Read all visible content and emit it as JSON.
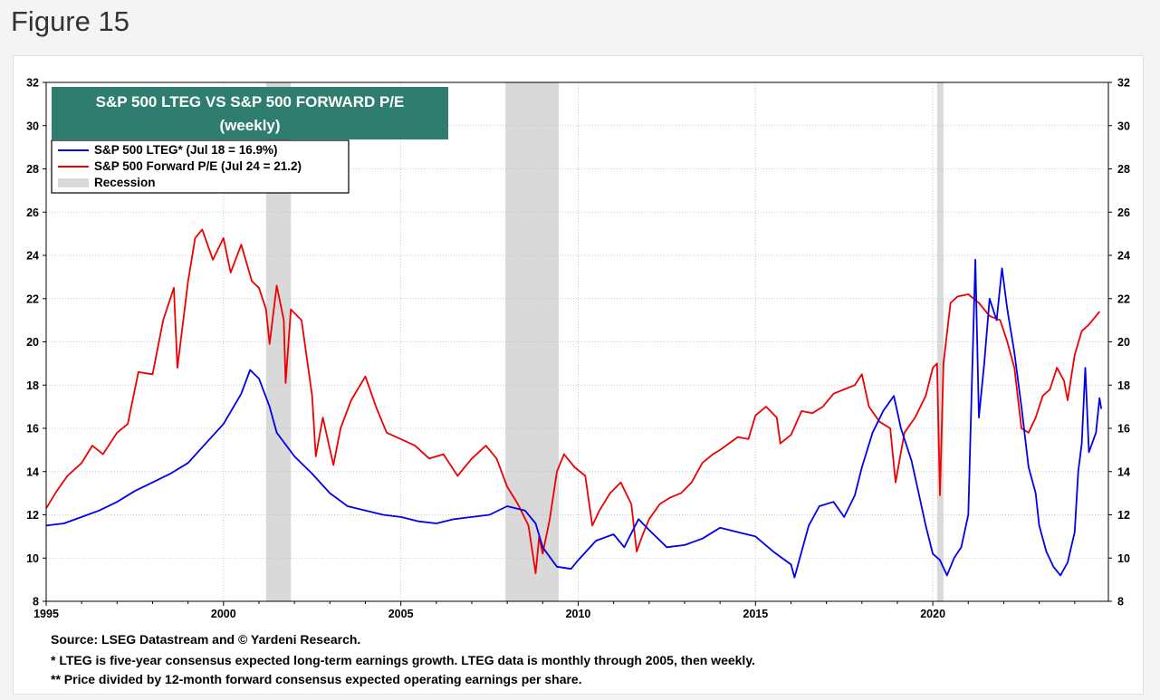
{
  "figure_label": "Figure 15",
  "footnotes": {
    "source": "Source: LSEG Datastream and © Yardeni Research.",
    "note1": "*  LTEG is five-year consensus expected long-term earnings growth. LTEG data is monthly through 2005, then weekly.",
    "note2": "** Price divided by 12-month forward consensus expected operating earnings per share."
  },
  "colors": {
    "lteg": "#0000ee",
    "pe": "#ee0000",
    "recession": "#d9d9d9",
    "title_bg": "#2e7d6e"
  },
  "chart_data": {
    "type": "line",
    "title": "S&P 500 LTEG VS S&P 500 FORWARD P/E",
    "subtitle": "(weekly)",
    "xlim": [
      1995,
      2024.95
    ],
    "ylim": [
      8,
      32
    ],
    "yticks": [
      8,
      10,
      12,
      14,
      16,
      18,
      20,
      22,
      24,
      26,
      28,
      30,
      32
    ],
    "xticks": [
      1995,
      2000,
      2005,
      2010,
      2015,
      2020
    ],
    "grid": true,
    "legend_position": "top-left",
    "legend": [
      {
        "key": "lteg",
        "label": "S&P 500 LTEG* (Jul 18 = 16.9%)"
      },
      {
        "key": "pe",
        "label": "S&P 500 Forward P/E (Jul 24 = 21.2)"
      },
      {
        "key": "recession",
        "label": "Recession"
      }
    ],
    "recessions": [
      [
        2001.2,
        2001.9
      ],
      [
        2007.95,
        2009.45
      ],
      [
        2020.12,
        2020.3
      ]
    ],
    "series": [
      {
        "key": "lteg",
        "name": "S&P 500 LTEG* (Jul 18 = 16.9%)",
        "points": [
          [
            1995.0,
            11.5
          ],
          [
            1995.5,
            11.6
          ],
          [
            1996.0,
            11.9
          ],
          [
            1996.5,
            12.2
          ],
          [
            1997.0,
            12.6
          ],
          [
            1997.5,
            13.1
          ],
          [
            1998.0,
            13.5
          ],
          [
            1998.5,
            13.9
          ],
          [
            1999.0,
            14.4
          ],
          [
            1999.5,
            15.3
          ],
          [
            2000.0,
            16.2
          ],
          [
            2000.5,
            17.6
          ],
          [
            2000.75,
            18.7
          ],
          [
            2001.0,
            18.3
          ],
          [
            2001.3,
            17.0
          ],
          [
            2001.5,
            15.8
          ],
          [
            2002.0,
            14.7
          ],
          [
            2002.5,
            13.9
          ],
          [
            2003.0,
            13.0
          ],
          [
            2003.5,
            12.4
          ],
          [
            2004.0,
            12.2
          ],
          [
            2004.5,
            12.0
          ],
          [
            2005.0,
            11.9
          ],
          [
            2005.5,
            11.7
          ],
          [
            2006.0,
            11.6
          ],
          [
            2006.5,
            11.8
          ],
          [
            2007.0,
            11.9
          ],
          [
            2007.5,
            12.0
          ],
          [
            2008.0,
            12.4
          ],
          [
            2008.5,
            12.2
          ],
          [
            2008.8,
            11.6
          ],
          [
            2009.0,
            10.5
          ],
          [
            2009.4,
            9.6
          ],
          [
            2009.8,
            9.5
          ],
          [
            2010.0,
            9.9
          ],
          [
            2010.5,
            10.8
          ],
          [
            2011.0,
            11.1
          ],
          [
            2011.3,
            10.5
          ],
          [
            2011.7,
            11.8
          ],
          [
            2012.0,
            11.3
          ],
          [
            2012.5,
            10.5
          ],
          [
            2013.0,
            10.6
          ],
          [
            2013.5,
            10.9
          ],
          [
            2014.0,
            11.4
          ],
          [
            2014.5,
            11.2
          ],
          [
            2015.0,
            11.0
          ],
          [
            2015.5,
            10.3
          ],
          [
            2016.0,
            9.7
          ],
          [
            2016.1,
            9.1
          ],
          [
            2016.3,
            10.3
          ],
          [
            2016.5,
            11.5
          ],
          [
            2016.8,
            12.4
          ],
          [
            2017.2,
            12.6
          ],
          [
            2017.5,
            11.9
          ],
          [
            2017.8,
            12.9
          ],
          [
            2018.0,
            14.2
          ],
          [
            2018.3,
            15.8
          ],
          [
            2018.6,
            16.8
          ],
          [
            2018.9,
            17.5
          ],
          [
            2019.1,
            16.0
          ],
          [
            2019.4,
            14.5
          ],
          [
            2019.6,
            13.0
          ],
          [
            2019.8,
            11.5
          ],
          [
            2020.0,
            10.2
          ],
          [
            2020.2,
            9.9
          ],
          [
            2020.4,
            9.2
          ],
          [
            2020.6,
            10.0
          ],
          [
            2020.8,
            10.5
          ],
          [
            2021.0,
            12.0
          ],
          [
            2021.1,
            18.0
          ],
          [
            2021.2,
            23.8
          ],
          [
            2021.3,
            16.5
          ],
          [
            2021.45,
            19.0
          ],
          [
            2021.6,
            22.0
          ],
          [
            2021.8,
            21.0
          ],
          [
            2021.95,
            23.4
          ],
          [
            2022.1,
            21.5
          ],
          [
            2022.3,
            19.5
          ],
          [
            2022.5,
            17.0
          ],
          [
            2022.7,
            14.2
          ],
          [
            2022.9,
            13.0
          ],
          [
            2023.0,
            11.5
          ],
          [
            2023.2,
            10.3
          ],
          [
            2023.4,
            9.6
          ],
          [
            2023.6,
            9.2
          ],
          [
            2023.8,
            9.8
          ],
          [
            2024.0,
            11.2
          ],
          [
            2024.1,
            14.0
          ],
          [
            2024.2,
            15.3
          ],
          [
            2024.3,
            18.8
          ],
          [
            2024.4,
            14.9
          ],
          [
            2024.6,
            15.8
          ],
          [
            2024.7,
            17.4
          ],
          [
            2024.75,
            16.9
          ]
        ]
      },
      {
        "key": "pe",
        "name": "S&P 500 Forward P/E (Jul 24 = 21.2)",
        "points": [
          [
            1995.0,
            12.3
          ],
          [
            1995.3,
            13.1
          ],
          [
            1995.6,
            13.8
          ],
          [
            1996.0,
            14.4
          ],
          [
            1996.3,
            15.2
          ],
          [
            1996.6,
            14.8
          ],
          [
            1997.0,
            15.8
          ],
          [
            1997.3,
            16.2
          ],
          [
            1997.6,
            18.6
          ],
          [
            1998.0,
            18.5
          ],
          [
            1998.3,
            21.0
          ],
          [
            1998.6,
            22.5
          ],
          [
            1998.7,
            18.8
          ],
          [
            1999.0,
            22.8
          ],
          [
            1999.2,
            24.8
          ],
          [
            1999.4,
            25.2
          ],
          [
            1999.7,
            23.8
          ],
          [
            2000.0,
            24.8
          ],
          [
            2000.2,
            23.2
          ],
          [
            2000.5,
            24.5
          ],
          [
            2000.8,
            22.8
          ],
          [
            2001.0,
            22.5
          ],
          [
            2001.2,
            21.5
          ],
          [
            2001.3,
            19.9
          ],
          [
            2001.5,
            22.6
          ],
          [
            2001.7,
            21.0
          ],
          [
            2001.75,
            18.1
          ],
          [
            2001.9,
            21.5
          ],
          [
            2002.2,
            21.0
          ],
          [
            2002.5,
            17.5
          ],
          [
            2002.6,
            14.7
          ],
          [
            2002.8,
            16.5
          ],
          [
            2003.1,
            14.3
          ],
          [
            2003.3,
            16.0
          ],
          [
            2003.6,
            17.3
          ],
          [
            2004.0,
            18.4
          ],
          [
            2004.3,
            17.0
          ],
          [
            2004.6,
            15.8
          ],
          [
            2005.0,
            15.5
          ],
          [
            2005.4,
            15.2
          ],
          [
            2005.8,
            14.6
          ],
          [
            2006.2,
            14.8
          ],
          [
            2006.6,
            13.8
          ],
          [
            2007.0,
            14.6
          ],
          [
            2007.4,
            15.2
          ],
          [
            2007.7,
            14.6
          ],
          [
            2008.0,
            13.3
          ],
          [
            2008.3,
            12.5
          ],
          [
            2008.6,
            11.5
          ],
          [
            2008.8,
            9.3
          ],
          [
            2008.9,
            11.0
          ],
          [
            2009.0,
            10.2
          ],
          [
            2009.2,
            11.8
          ],
          [
            2009.4,
            14.0
          ],
          [
            2009.6,
            14.8
          ],
          [
            2009.9,
            14.2
          ],
          [
            2010.2,
            13.8
          ],
          [
            2010.4,
            11.5
          ],
          [
            2010.6,
            12.2
          ],
          [
            2010.9,
            13.0
          ],
          [
            2011.2,
            13.5
          ],
          [
            2011.5,
            12.5
          ],
          [
            2011.65,
            10.3
          ],
          [
            2011.8,
            11.0
          ],
          [
            2012.0,
            11.8
          ],
          [
            2012.3,
            12.5
          ],
          [
            2012.6,
            12.8
          ],
          [
            2012.9,
            13.0
          ],
          [
            2013.2,
            13.5
          ],
          [
            2013.5,
            14.4
          ],
          [
            2013.8,
            14.8
          ],
          [
            2014.0,
            15.0
          ],
          [
            2014.5,
            15.6
          ],
          [
            2014.8,
            15.5
          ],
          [
            2015.0,
            16.6
          ],
          [
            2015.3,
            17.0
          ],
          [
            2015.6,
            16.5
          ],
          [
            2015.7,
            15.3
          ],
          [
            2016.0,
            15.7
          ],
          [
            2016.3,
            16.8
          ],
          [
            2016.6,
            16.7
          ],
          [
            2016.9,
            17.0
          ],
          [
            2017.2,
            17.6
          ],
          [
            2017.5,
            17.8
          ],
          [
            2017.8,
            18.0
          ],
          [
            2018.0,
            18.5
          ],
          [
            2018.2,
            17.0
          ],
          [
            2018.5,
            16.3
          ],
          [
            2018.8,
            16.0
          ],
          [
            2018.95,
            13.5
          ],
          [
            2019.2,
            15.8
          ],
          [
            2019.5,
            16.5
          ],
          [
            2019.8,
            17.5
          ],
          [
            2020.0,
            18.8
          ],
          [
            2020.12,
            19.0
          ],
          [
            2020.2,
            12.9
          ],
          [
            2020.3,
            19.0
          ],
          [
            2020.5,
            21.8
          ],
          [
            2020.7,
            22.1
          ],
          [
            2021.0,
            22.2
          ],
          [
            2021.3,
            21.8
          ],
          [
            2021.6,
            21.2
          ],
          [
            2021.9,
            21.0
          ],
          [
            2022.1,
            20.0
          ],
          [
            2022.3,
            18.8
          ],
          [
            2022.5,
            16.0
          ],
          [
            2022.7,
            15.8
          ],
          [
            2022.9,
            16.5
          ],
          [
            2023.1,
            17.5
          ],
          [
            2023.3,
            17.8
          ],
          [
            2023.5,
            18.8
          ],
          [
            2023.7,
            18.2
          ],
          [
            2023.8,
            17.3
          ],
          [
            2024.0,
            19.4
          ],
          [
            2024.2,
            20.5
          ],
          [
            2024.4,
            20.8
          ],
          [
            2024.6,
            21.2
          ],
          [
            2024.7,
            21.4
          ]
        ]
      }
    ]
  }
}
